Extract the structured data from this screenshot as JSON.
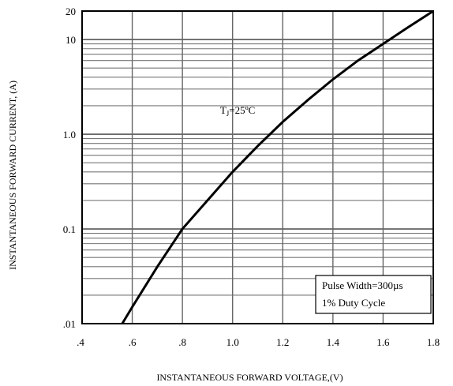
{
  "chart_data": {
    "type": "line",
    "title": "",
    "xlabel": "INSTANTANEOUS FORWARD VOLTAGE,(V)",
    "ylabel": "INSTANTANEOUS FORWARD CURRENT, (A)",
    "x_scale": "linear",
    "y_scale": "log",
    "xlim": [
      0.4,
      1.8
    ],
    "ylim": [
      0.01,
      20
    ],
    "x_ticks": [
      0.4,
      0.6,
      0.8,
      1.0,
      1.2,
      1.4,
      1.6,
      1.8
    ],
    "x_tick_labels": [
      ".4",
      ".6",
      ".8",
      "1.0",
      "1.2",
      "1.4",
      "1.6",
      "1.8"
    ],
    "y_ticks": [
      0.01,
      0.1,
      1.0,
      10,
      20
    ],
    "y_tick_labels": [
      ".01",
      "0.1",
      "1.0",
      "10",
      "20"
    ],
    "grid": true,
    "series": [
      {
        "x": [
          0.56,
          0.6,
          0.7,
          0.8,
          0.9,
          1.0,
          1.1,
          1.2,
          1.3,
          1.4,
          1.5,
          1.6,
          1.7,
          1.8
        ],
        "y": [
          0.01,
          0.015,
          0.04,
          0.1,
          0.2,
          0.4,
          0.75,
          1.35,
          2.3,
          3.8,
          6.0,
          9.0,
          13.5,
          20
        ]
      }
    ],
    "annotations": {
      "temperature": "T",
      "temperature_sub": "J",
      "temperature_rest": "=25ºC",
      "pulse_width": "Pulse Width=300µs",
      "duty_cycle": "1% Duty Cycle"
    }
  }
}
